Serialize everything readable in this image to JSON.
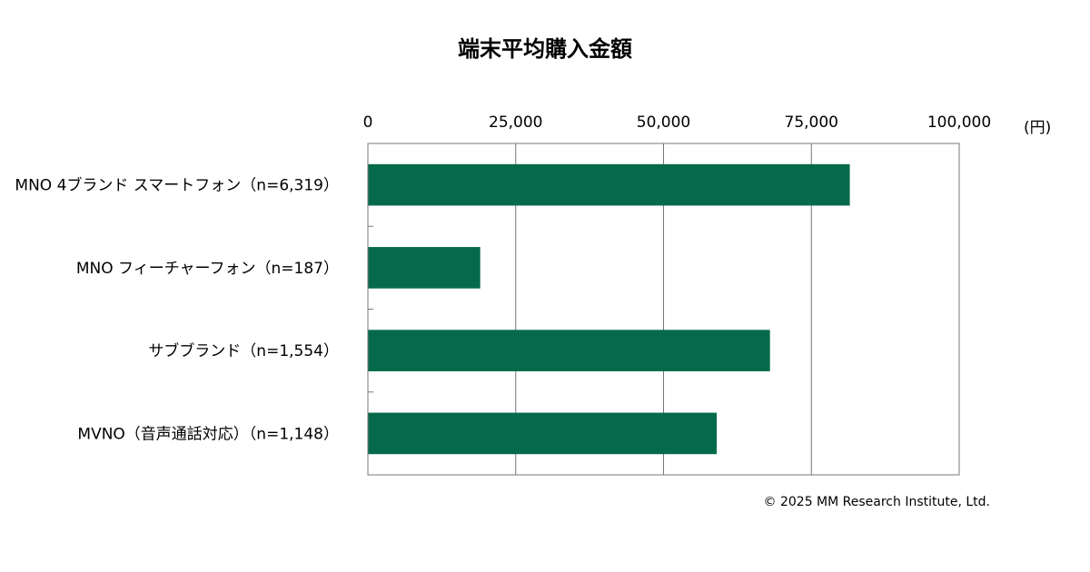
{
  "chart_data": {
    "type": "bar",
    "orientation": "horizontal",
    "title": "端末平均購入金額",
    "unit": "(円)",
    "categories": [
      "MNO 4ブランド スマートフォン（n=6,319）",
      "MNO フィーチャーフォン（n=187）",
      "サブブランド（n=1,554）",
      "MVNO（音声通話対応）（n=1,148）"
    ],
    "values": [
      81500,
      19000,
      68000,
      59000
    ],
    "xlim": [
      0,
      100000
    ],
    "ticks": [
      0,
      25000,
      50000,
      75000,
      100000
    ],
    "tick_labels": [
      "0",
      "25,000",
      "50,000",
      "75,000",
      "100,000"
    ],
    "grid": true,
    "axis_position": "top",
    "bar_color": "#046a4b"
  },
  "copyright": "© 2025 MM Research Institute, Ltd."
}
